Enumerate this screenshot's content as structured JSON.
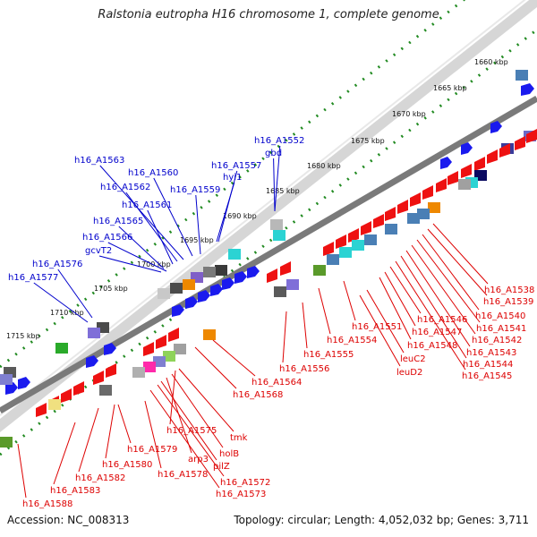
{
  "title": "Ralstonia eutropha H16 chromosome 1, complete genome",
  "footer": {
    "accession": "Accession: NC_008313",
    "summary": "Topology: circular; Length: 4,052,032 bp; Genes: 3,711"
  },
  "colors": {
    "plus_label": "#0000cc",
    "minus_label": "#dd0000",
    "backbone": "#7a7a7a",
    "tick": "#228b22"
  },
  "scale_ticks": [
    "1660 kbp",
    "1665 kbp",
    "1670 kbp",
    "1675 kbp",
    "1680 kbp",
    "1685 kbp",
    "1690 kbp",
    "1695 kbp",
    "1700 kbp",
    "1705 kbp",
    "1710 kbp",
    "1715 kbp"
  ],
  "plus_strand_labels": [
    "h16_A1552",
    "gbd",
    "h16_A1557",
    "hyi1",
    "h16_A1559",
    "h16_A1560",
    "h16_A1563",
    "h16_A1562",
    "h16_A1561",
    "h16_A1565",
    "h16_A1566",
    "gcvT2",
    "h16_A1576",
    "h16_A1577"
  ],
  "minus_strand_labels": [
    "h16_A1538",
    "h16_A1539",
    "h16_A1540",
    "h16_A1541",
    "h16_A1542",
    "h16_A1543",
    "h16_A1544",
    "h16_A1545",
    "h16_A1546",
    "h16_A1547",
    "h16_A1548",
    "h16_A1551",
    "leuC2",
    "leuD2",
    "h16_A1554",
    "h16_A1555",
    "h16_A1556",
    "h16_A1564",
    "h16_A1568",
    "tmk",
    "h16_A1575",
    "holB",
    "arp3",
    "pilZ",
    "h16_A1579",
    "h16_A1578",
    "h16_A1572",
    "h16_A1573",
    "h16_A1580",
    "h16_A1582",
    "h16_A1583",
    "h16_A1588"
  ]
}
